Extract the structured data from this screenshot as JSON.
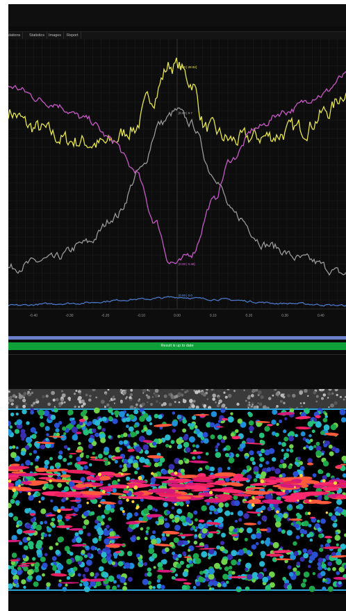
{
  "tabs": [
    {
      "label": "Simulations"
    },
    {
      "label": "Statistics"
    },
    {
      "label": "Images"
    },
    {
      "label": "Report"
    }
  ],
  "status": {
    "text": "Result is up to date"
  },
  "chart_data": {
    "type": "line",
    "x_ticks": [
      "-0.40",
      "-0.30",
      "-0.20",
      "-0.10",
      "0.00",
      "0.10",
      "0.20",
      "0.30",
      "0.40"
    ],
    "xlim": [
      -0.47,
      0.47
    ],
    "grid": true,
    "peak_labels": {
      "yellow": "[0.00 | 28.92]",
      "gray": "[0.00 | 0.7",
      "magenta": "[0.00 | 0.38]",
      "blue": "[0.00 | 0.0"
    },
    "series": [
      {
        "color": "#e8e84a",
        "values": [
          [
            -0.47,
            0.78
          ],
          [
            -0.4,
            0.7
          ],
          [
            -0.3,
            0.64
          ],
          [
            -0.2,
            0.62
          ],
          [
            -0.12,
            0.7
          ],
          [
            -0.07,
            0.85
          ],
          [
            -0.02,
            1.0
          ],
          [
            0.0,
            1.0
          ],
          [
            0.04,
            0.92
          ],
          [
            0.08,
            0.7
          ],
          [
            0.15,
            0.64
          ],
          [
            0.25,
            0.66
          ],
          [
            0.35,
            0.7
          ],
          [
            0.42,
            0.78
          ],
          [
            0.47,
            0.88
          ]
        ]
      },
      {
        "color": "#9a9a9a",
        "values": [
          [
            -0.47,
            0.03
          ],
          [
            -0.35,
            0.07
          ],
          [
            -0.25,
            0.15
          ],
          [
            -0.17,
            0.28
          ],
          [
            -0.1,
            0.5
          ],
          [
            -0.05,
            0.72
          ],
          [
            0.0,
            0.78
          ],
          [
            0.04,
            0.72
          ],
          [
            0.1,
            0.48
          ],
          [
            0.16,
            0.28
          ],
          [
            0.25,
            0.14
          ],
          [
            0.35,
            0.07
          ],
          [
            0.47,
            0.0
          ]
        ]
      },
      {
        "color": "#c85ac8",
        "values": [
          [
            -0.47,
            0.9
          ],
          [
            -0.35,
            0.82
          ],
          [
            -0.25,
            0.74
          ],
          [
            -0.18,
            0.64
          ],
          [
            -0.12,
            0.5
          ],
          [
            -0.06,
            0.25
          ],
          [
            -0.02,
            0.06
          ],
          [
            0.0,
            0.05
          ],
          [
            0.04,
            0.1
          ],
          [
            0.1,
            0.35
          ],
          [
            0.15,
            0.55
          ],
          [
            0.22,
            0.7
          ],
          [
            0.3,
            0.78
          ],
          [
            0.4,
            0.86
          ],
          [
            0.47,
            0.95
          ]
        ]
      },
      {
        "color": "#4a78c8",
        "values": [
          [
            -0.47,
            -0.15
          ],
          [
            -0.3,
            -0.14
          ],
          [
            -0.1,
            -0.12
          ],
          [
            0.0,
            -0.11
          ],
          [
            0.1,
            -0.12
          ],
          [
            0.3,
            -0.14
          ],
          [
            0.47,
            -0.15
          ]
        ]
      }
    ]
  }
}
